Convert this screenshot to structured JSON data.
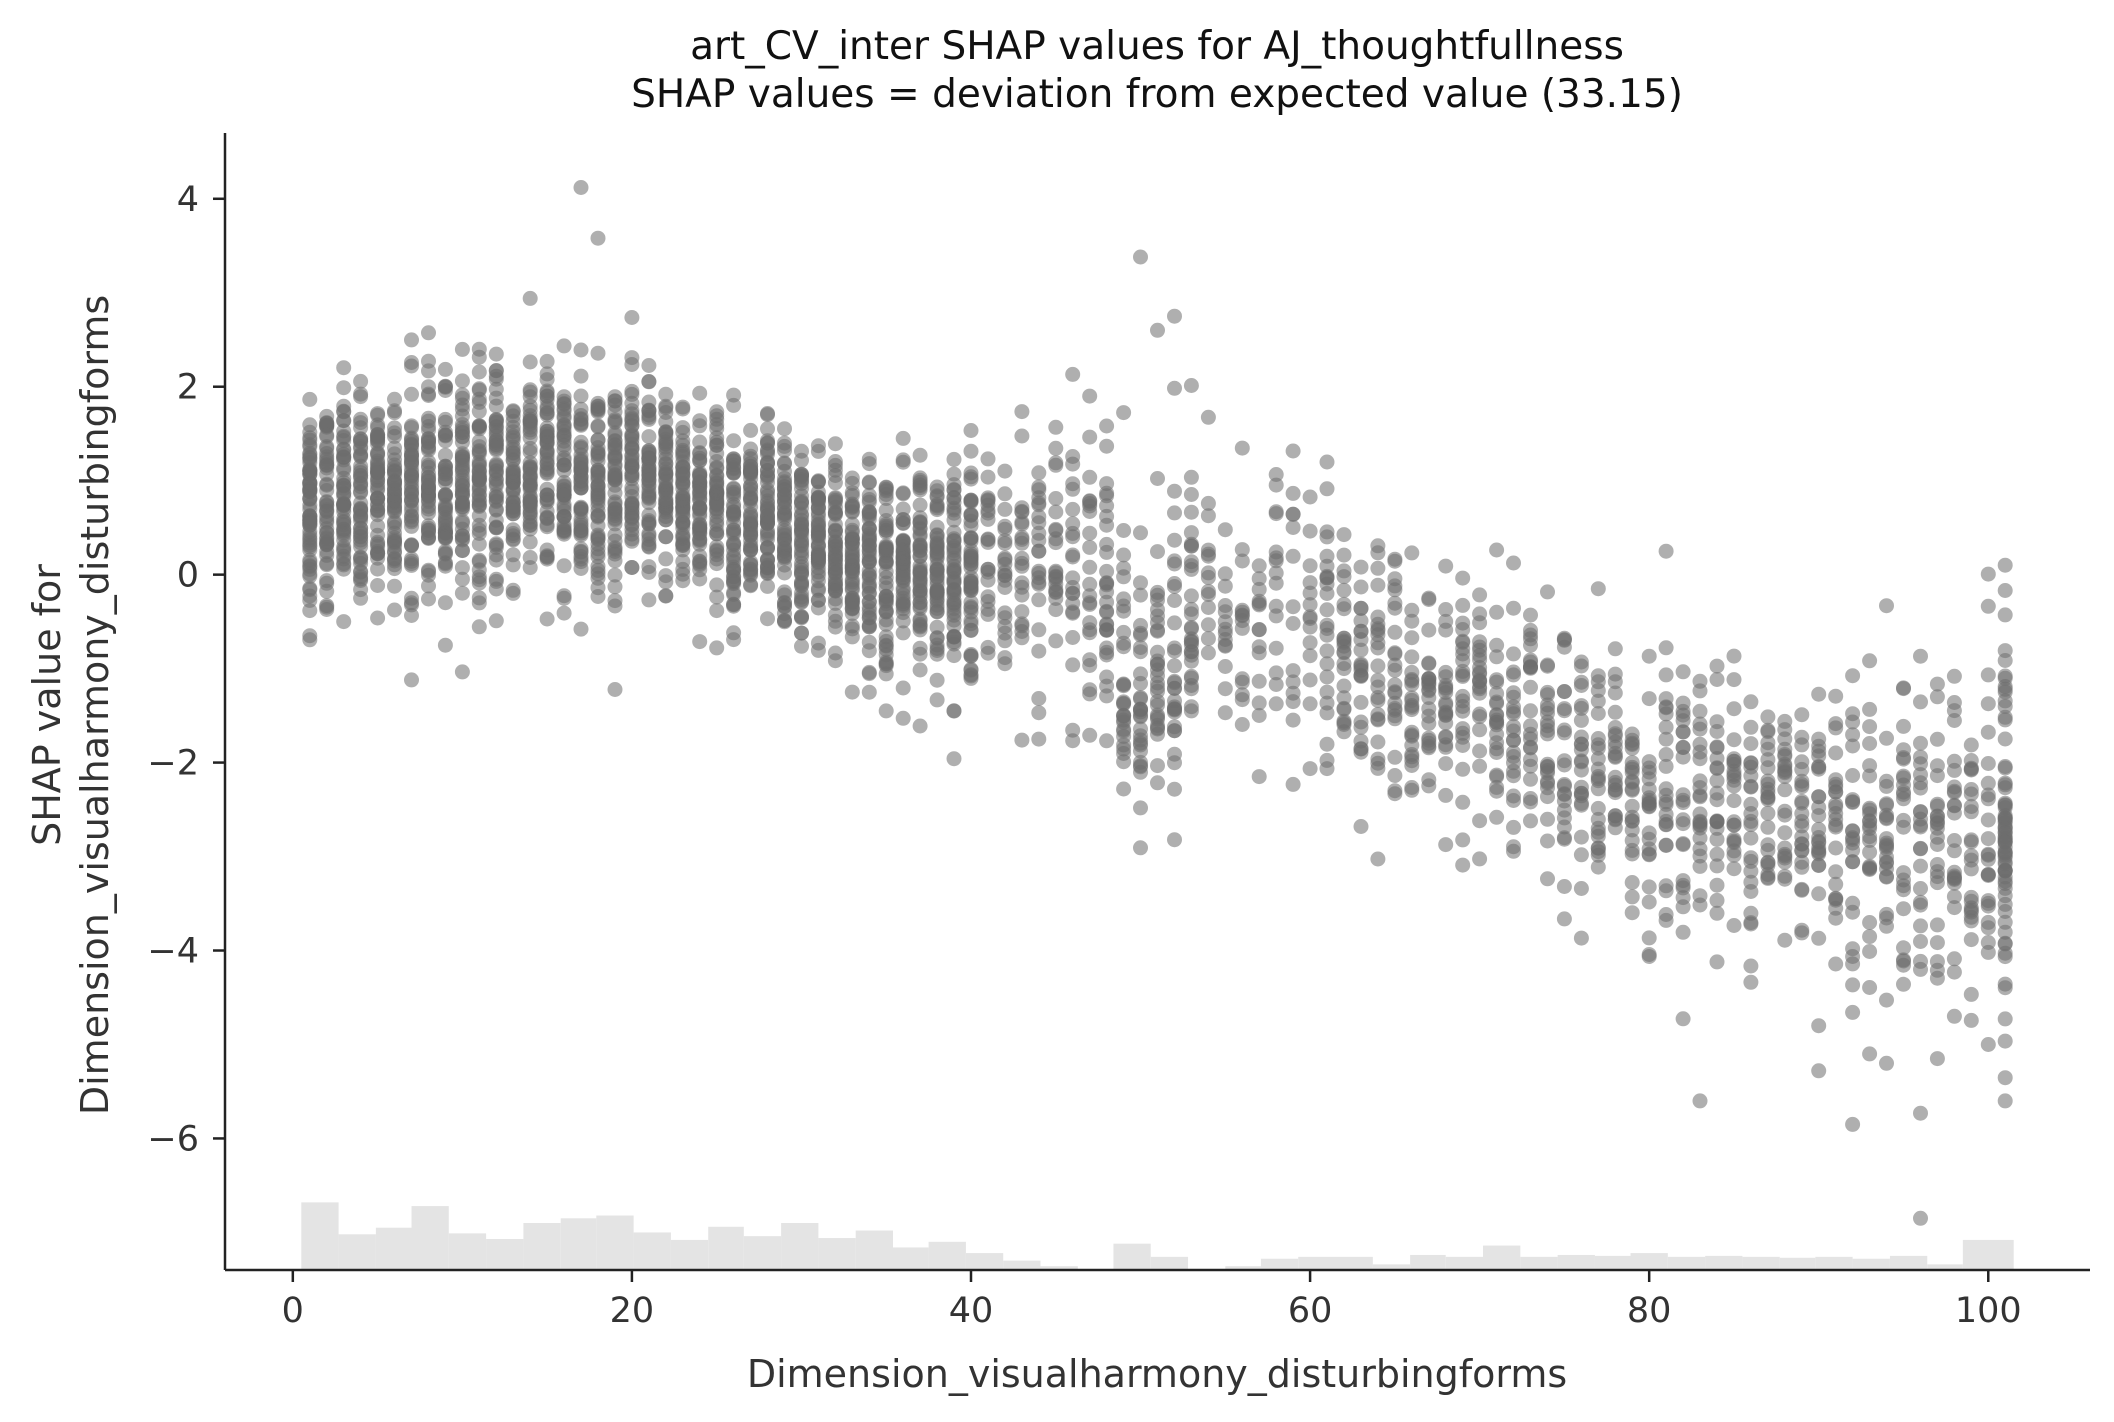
{
  "chart_data": {
    "type": "scatter",
    "title": "art_CV_inter SHAP values for AJ_thoughtfullness",
    "subtitle": "SHAP values = deviation from expected value (33.15)",
    "xlabel": "Dimension_visualharmony_disturbingforms",
    "ylabel": [
      "SHAP value for",
      "Dimension_visualharmony_disturbingforms"
    ],
    "xlim": [
      -4,
      106
    ],
    "ylim": [
      -7.4,
      4.7
    ],
    "xticks": [
      0,
      20,
      40,
      60,
      80,
      100
    ],
    "yticks": [
      4,
      2,
      0,
      -2,
      -4,
      -6
    ],
    "grid": false,
    "point_color": "#6e6e6e",
    "histogram_color": "#e4e4e4",
    "trend": [
      [
        1,
        0.75
      ],
      [
        5,
        0.85
      ],
      [
        10,
        1.0
      ],
      [
        15,
        1.05
      ],
      [
        20,
        1.0
      ],
      [
        25,
        0.75
      ],
      [
        30,
        0.35
      ],
      [
        35,
        0.05
      ],
      [
        40,
        0.1
      ],
      [
        45,
        0.2
      ],
      [
        50,
        -0.6
      ],
      [
        55,
        -0.4
      ],
      [
        60,
        -0.5
      ],
      [
        65,
        -1.1
      ],
      [
        70,
        -1.5
      ],
      [
        75,
        -2.05
      ],
      [
        80,
        -2.35
      ],
      [
        85,
        -2.4
      ],
      [
        90,
        -2.55
      ],
      [
        95,
        -2.75
      ],
      [
        101,
        -2.65
      ]
    ],
    "spread": [
      [
        1,
        0.55
      ],
      [
        10,
        0.6
      ],
      [
        20,
        0.55
      ],
      [
        30,
        0.5
      ],
      [
        40,
        0.55
      ],
      [
        50,
        0.9
      ],
      [
        60,
        0.7
      ],
      [
        70,
        0.65
      ],
      [
        80,
        0.7
      ],
      [
        90,
        0.75
      ],
      [
        101,
        1.0
      ]
    ],
    "outliers": [
      [
        17,
        4.12
      ],
      [
        18,
        3.58
      ],
      [
        50,
        3.38
      ],
      [
        52,
        2.75
      ],
      [
        51,
        2.6
      ],
      [
        47,
        1.9
      ],
      [
        83,
        -5.6
      ],
      [
        90,
        -5.28
      ],
      [
        92,
        -5.85
      ],
      [
        93,
        -5.1
      ],
      [
        94,
        -5.2
      ],
      [
        101,
        -5.6
      ],
      [
        96,
        -6.85
      ],
      [
        90,
        -4.8
      ],
      [
        98,
        -4.7
      ],
      [
        100,
        -5.0
      ],
      [
        97,
        -5.15
      ],
      [
        44,
        -1.75
      ],
      [
        33,
        -1.25
      ],
      [
        35,
        -1.45
      ],
      [
        58,
        0.65
      ],
      [
        77,
        -0.15
      ],
      [
        81,
        0.25
      ],
      [
        101,
        0.1
      ],
      [
        1,
        -0.65
      ],
      [
        3,
        -0.5
      ]
    ],
    "histogram": [
      [
        0.5,
        2.7,
        0.72
      ],
      [
        2.7,
        4.9,
        0.38
      ],
      [
        4.9,
        7.0,
        0.45
      ],
      [
        7.0,
        9.2,
        0.68
      ],
      [
        9.2,
        11.4,
        0.39
      ],
      [
        11.4,
        13.6,
        0.33
      ],
      [
        13.6,
        15.8,
        0.5
      ],
      [
        15.8,
        17.9,
        0.55
      ],
      [
        17.9,
        20.1,
        0.58
      ],
      [
        20.1,
        22.3,
        0.4
      ],
      [
        22.3,
        24.5,
        0.32
      ],
      [
        24.5,
        26.6,
        0.46
      ],
      [
        26.6,
        28.8,
        0.36
      ],
      [
        28.8,
        31.0,
        0.5
      ],
      [
        31.0,
        33.2,
        0.34
      ],
      [
        33.2,
        35.4,
        0.42
      ],
      [
        35.4,
        37.5,
        0.24
      ],
      [
        37.5,
        39.7,
        0.3
      ],
      [
        39.7,
        41.9,
        0.18
      ],
      [
        41.9,
        44.1,
        0.1
      ],
      [
        44.1,
        46.3,
        0.04
      ],
      [
        46.3,
        48.4,
        0.0
      ],
      [
        48.4,
        50.6,
        0.28
      ],
      [
        50.6,
        52.8,
        0.14
      ],
      [
        52.8,
        55.0,
        0.0
      ],
      [
        55.0,
        57.1,
        0.04
      ],
      [
        57.1,
        59.3,
        0.12
      ],
      [
        59.3,
        61.5,
        0.14
      ],
      [
        61.5,
        63.7,
        0.14
      ],
      [
        63.7,
        65.9,
        0.06
      ],
      [
        65.9,
        68.0,
        0.16
      ],
      [
        68.0,
        70.2,
        0.14
      ],
      [
        70.2,
        72.4,
        0.26
      ],
      [
        72.4,
        74.6,
        0.14
      ],
      [
        74.6,
        76.8,
        0.16
      ],
      [
        76.8,
        78.9,
        0.15
      ],
      [
        78.9,
        81.1,
        0.18
      ],
      [
        81.1,
        83.3,
        0.14
      ],
      [
        83.3,
        85.5,
        0.15
      ],
      [
        85.5,
        87.7,
        0.14
      ],
      [
        87.7,
        89.8,
        0.13
      ],
      [
        89.8,
        92.0,
        0.14
      ],
      [
        92.0,
        94.2,
        0.12
      ],
      [
        94.2,
        96.4,
        0.15
      ],
      [
        96.4,
        98.5,
        0.06
      ],
      [
        98.5,
        101.5,
        0.32
      ]
    ]
  }
}
